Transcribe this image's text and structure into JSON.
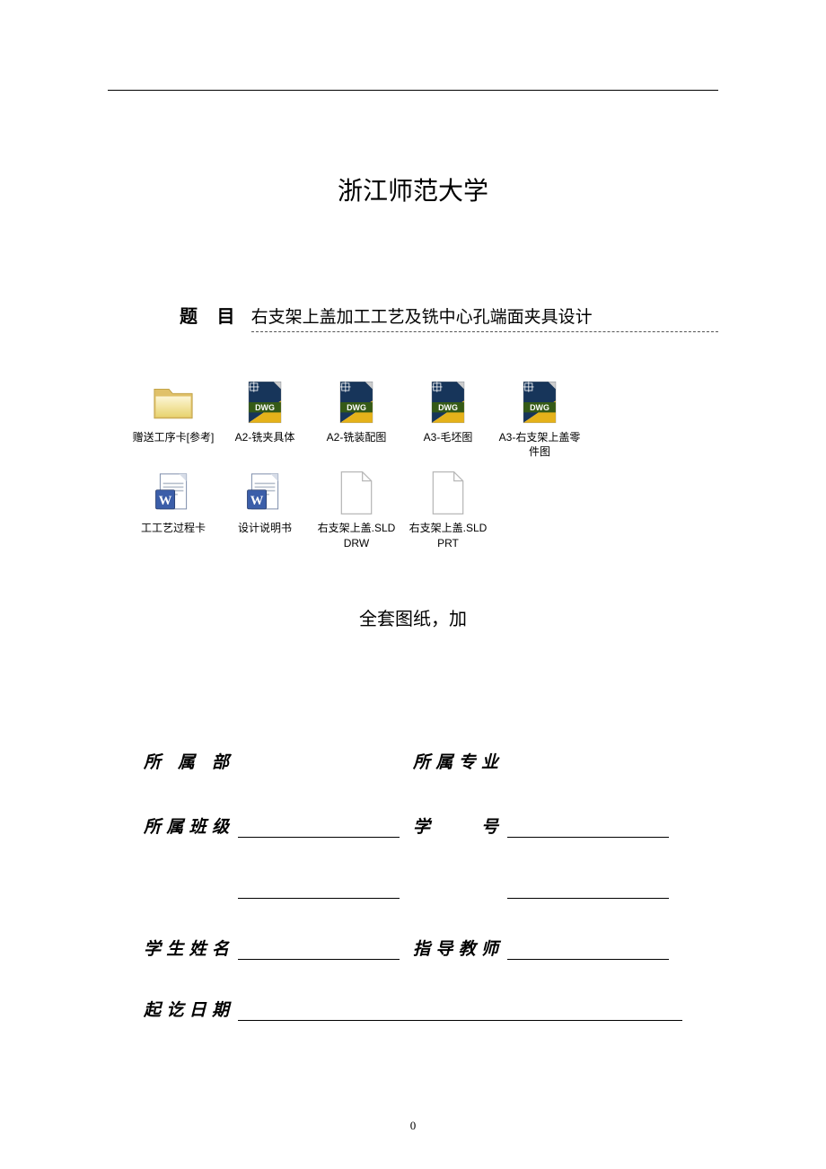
{
  "university": "浙江师范大学",
  "title_label": "题  目",
  "title_content": "右支架上盖加工工艺及铣中心孔端面夹具设计",
  "sub_caption": "全套图纸，加",
  "files": [
    {
      "type": "folder",
      "label": "赠送工序卡[参考]"
    },
    {
      "type": "dwg",
      "label": "A2-铣夹具体"
    },
    {
      "type": "dwg",
      "label": "A2-铣装配图"
    },
    {
      "type": "dwg",
      "label": "A3-毛坯图"
    },
    {
      "type": "dwg",
      "label": "A3-右支架上盖零件图"
    },
    {
      "type": "word",
      "label": "工工艺过程卡"
    },
    {
      "type": "word",
      "label": "设计说明书"
    },
    {
      "type": "blank",
      "label": "右支架上盖.SLDDRW"
    },
    {
      "type": "blank",
      "label": "右支架上盖.SLDPRT"
    }
  ],
  "form": {
    "row1_left": "所 属 部",
    "row1_right": "所属专业",
    "row2_left": "所属班级",
    "row2_right": "学    号",
    "row3_left": "学生姓名",
    "row3_right": "指导教师",
    "row4_left": "起讫日期"
  },
  "page_number": "0",
  "colors": {
    "dwg_ext_band": "#355a17",
    "dwg_upper": "#17355a",
    "dwg_lower": "#e5b21a",
    "folder_back": "#e0c169",
    "folder_front_light": "#fdf6d6",
    "folder_front_dark": "#e8d470",
    "word_blue": "#3b5ea9",
    "word_band": "#2a3e6e",
    "blank_stroke": "#b8b8b8"
  }
}
